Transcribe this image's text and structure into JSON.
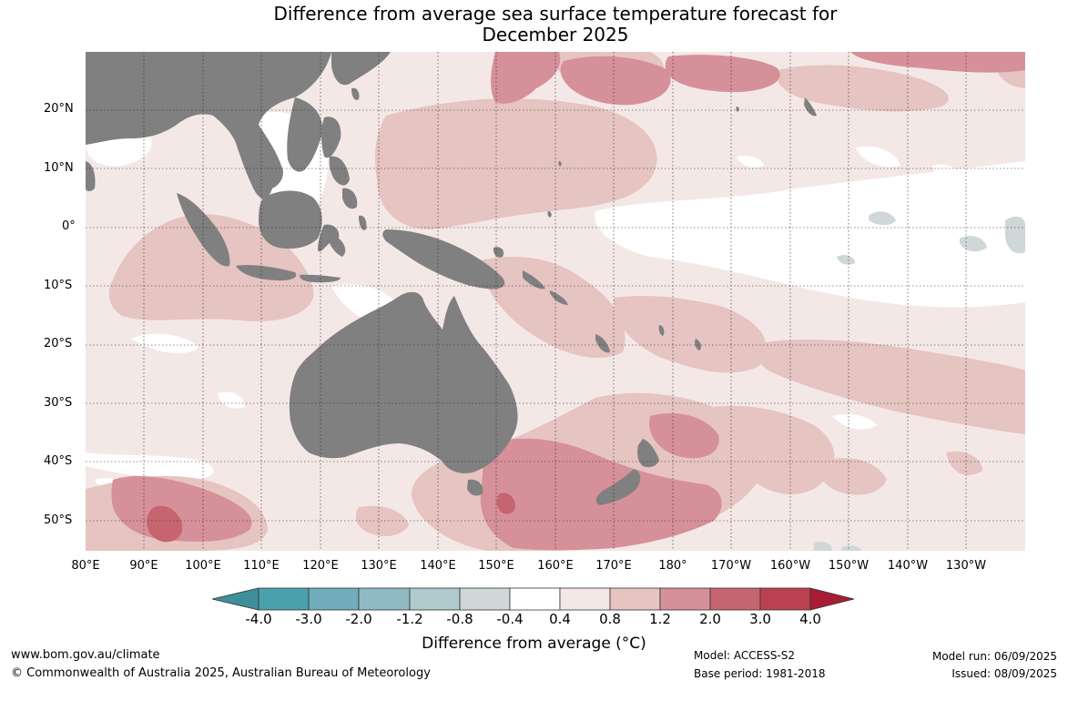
{
  "title_line1": "Difference from average sea surface temperature forecast for",
  "title_line2": "December 2025",
  "lat_labels": [
    "20°N",
    "10°N",
    "0°",
    "10°S",
    "20°S",
    "30°S",
    "40°S",
    "50°S"
  ],
  "lon_labels": [
    "80°E",
    "90°E",
    "100°E",
    "110°E",
    "120°E",
    "130°E",
    "140°E",
    "150°E",
    "160°E",
    "170°E",
    "180°",
    "170°W",
    "160°W",
    "150°W",
    "140°W",
    "130°W"
  ],
  "colorbar": {
    "ticks": [
      "-4.0",
      "-3.0",
      "-2.0",
      "-1.2",
      "-0.8",
      "-0.4",
      "0.4",
      "0.8",
      "1.2",
      "2.0",
      "3.0",
      "4.0"
    ],
    "colors": [
      "#3f8f99",
      "#4ba0ae",
      "#70acb9",
      "#8fbac3",
      "#aecacd",
      "#cfd7d8",
      "#ffffff",
      "#f4e8e7",
      "#e6c4c1",
      "#d6909a",
      "#c6646f",
      "#bc4150",
      "#a81c35"
    ],
    "title": "Difference from average (°C)"
  },
  "footer": {
    "website": "www.bom.gov.au/climate",
    "copyright": "© Commonwealth of Australia 2025, Australian Bureau of Meteorology",
    "model": "Model: ACCESS-S2",
    "base_period": "Base period: 1981-2018",
    "model_run": "Model run: 06/09/2025",
    "issued": "Issued: 08/09/2025"
  },
  "map_colors": {
    "land": "#808080",
    "ocean_base": "#f4e8e7"
  }
}
